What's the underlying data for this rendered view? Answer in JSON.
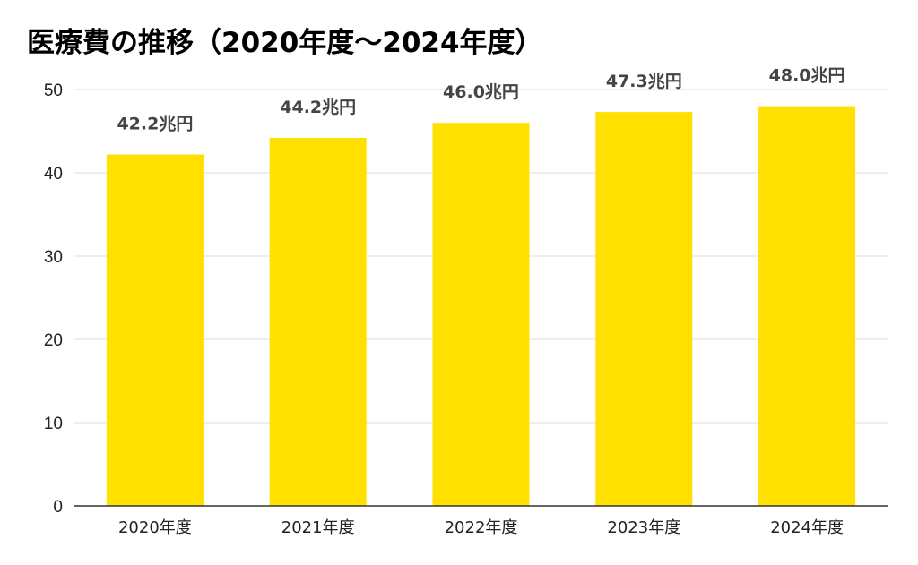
{
  "chart_data": {
    "type": "bar",
    "title": "医療費の推移（2020年度〜2024年度）",
    "categories": [
      "2020年度",
      "2021年度",
      "2022年度",
      "2023年度",
      "2024年度"
    ],
    "series": [
      {
        "values": [
          42.2,
          44.2,
          46.0,
          47.3,
          48.0
        ]
      }
    ],
    "data_labels": [
      "42.2兆円",
      "44.2兆円",
      "46.0兆円",
      "47.3兆円",
      "48.0兆円"
    ],
    "yticks": [
      "0",
      "10",
      "20",
      "30",
      "40",
      "50"
    ],
    "ylim": [
      0,
      50
    ],
    "xlabel": "",
    "ylabel": "",
    "grid": true,
    "legend": "none",
    "colors": {
      "bar": "#FFE000",
      "grid": "#dddddd",
      "axis": "#333333"
    }
  }
}
